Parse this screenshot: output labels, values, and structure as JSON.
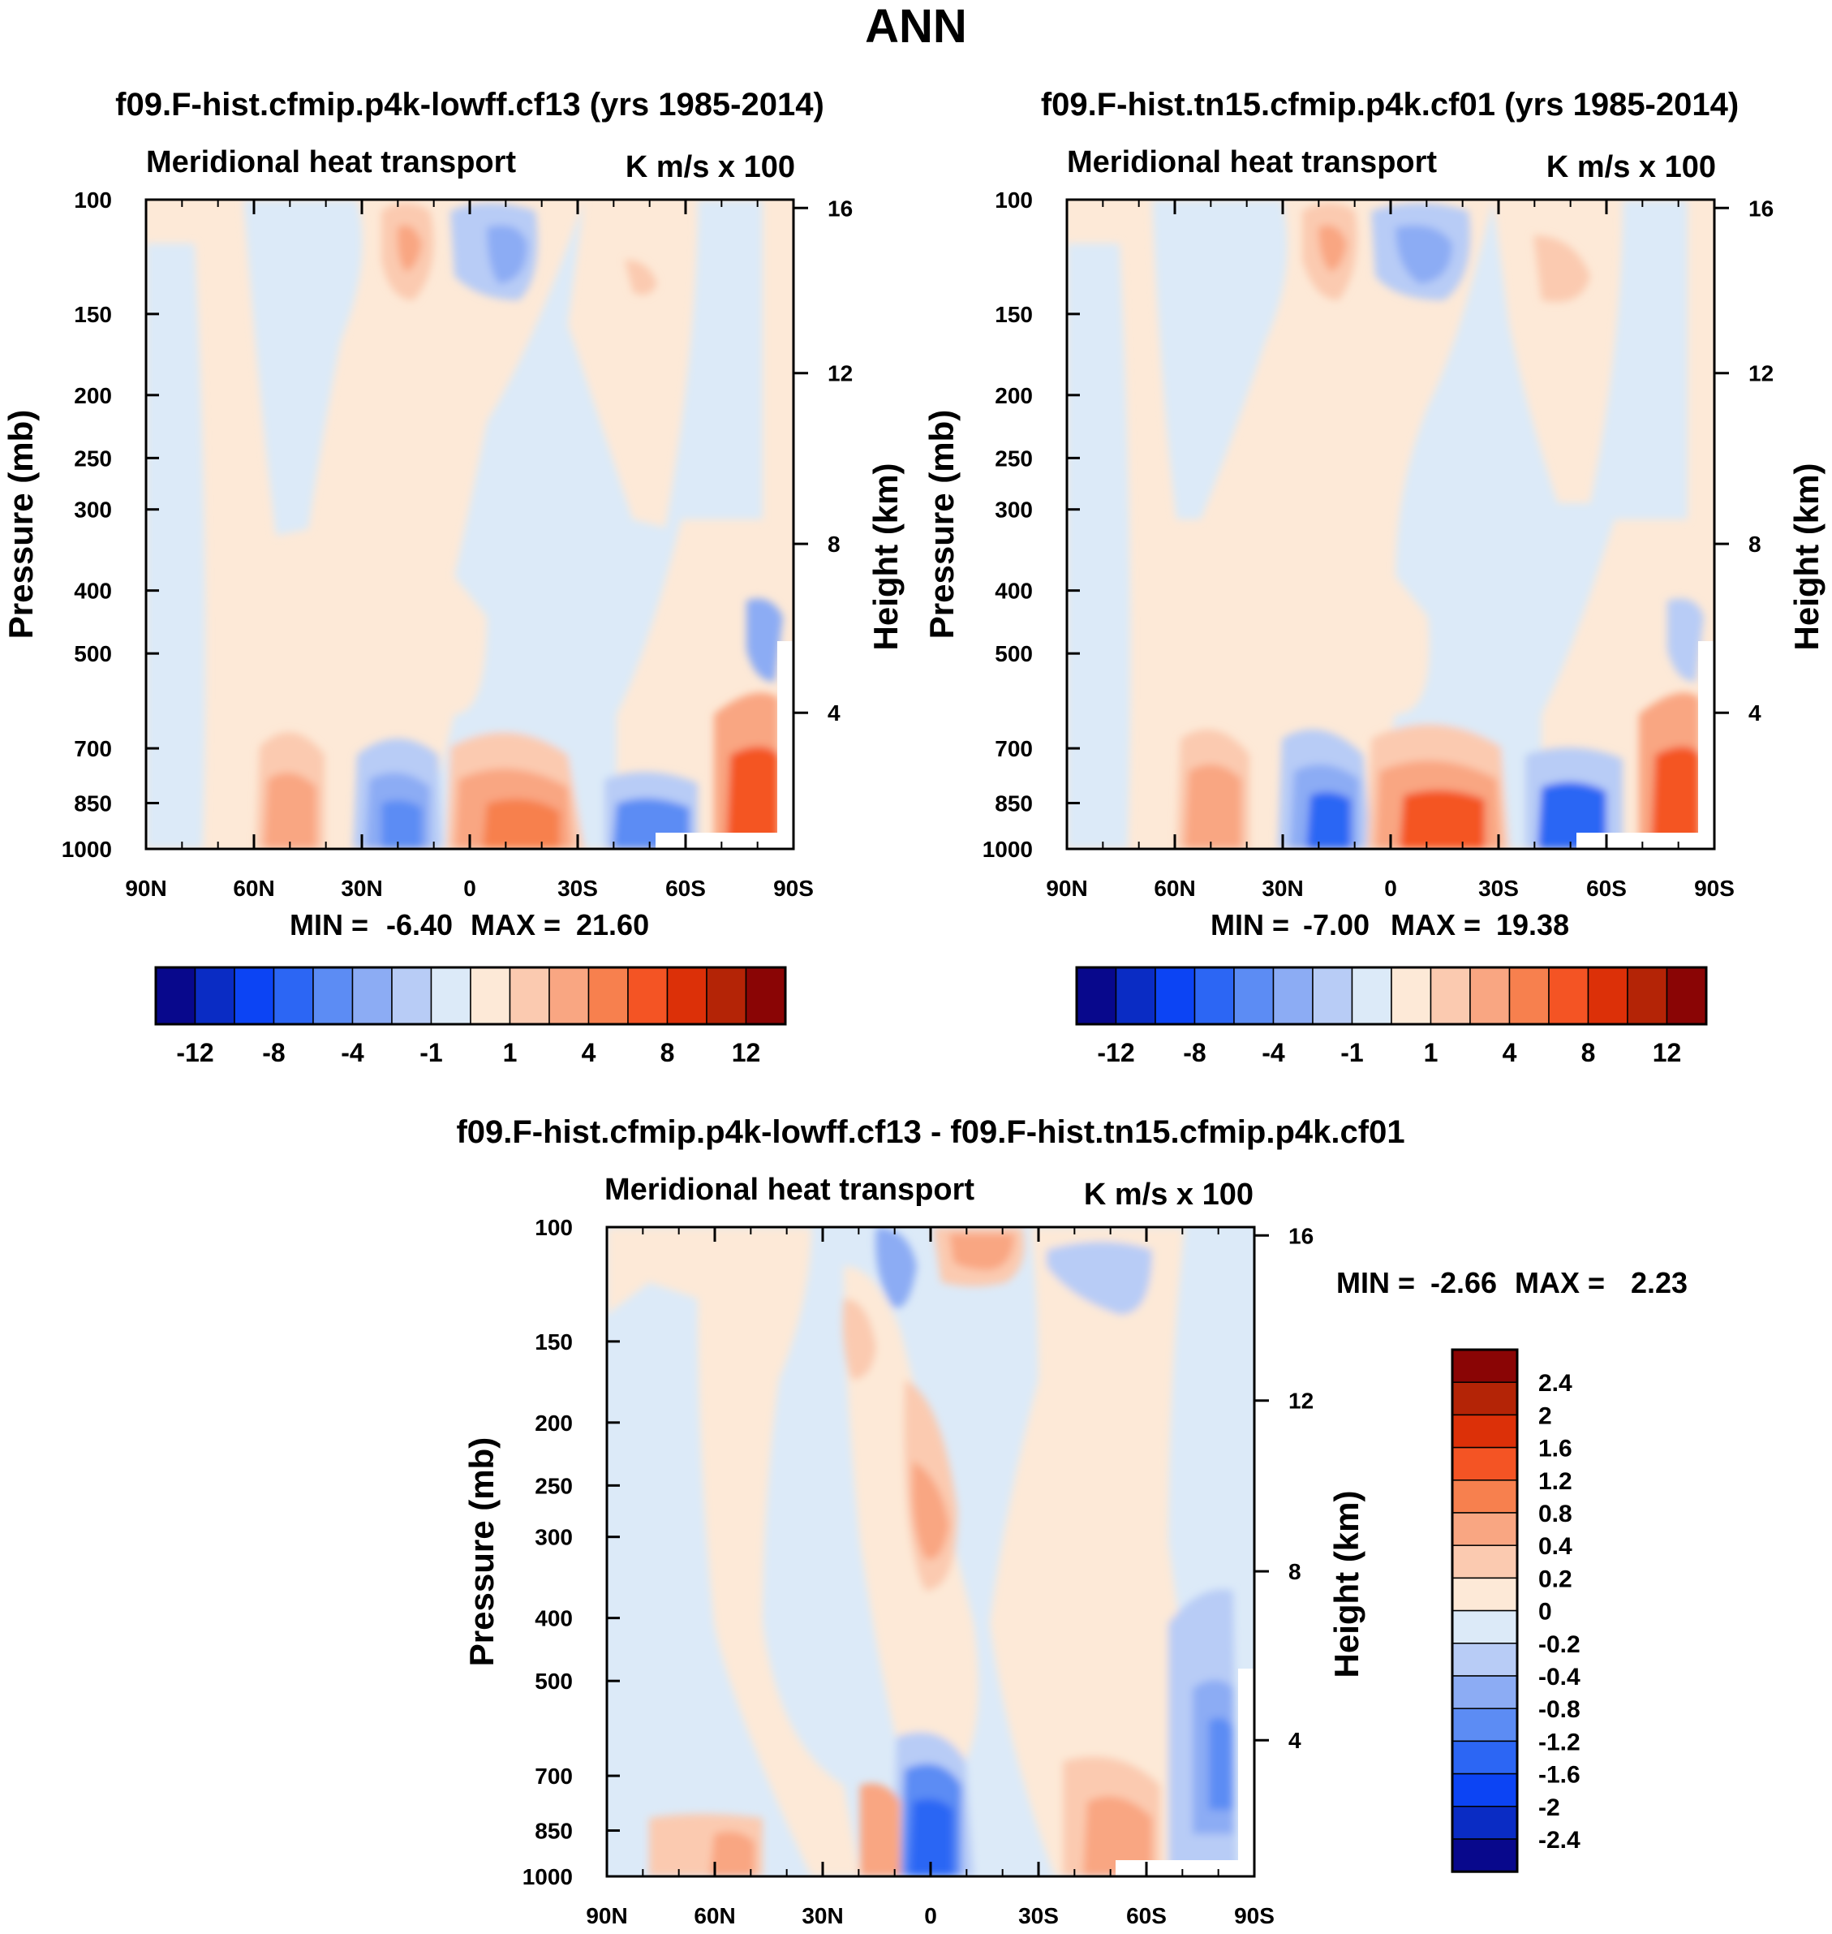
{
  "page_title": "ANN",
  "colors": {
    "colorbar_top": [
      "#08088c",
      "#0a2cc4",
      "#0c44f4",
      "#2c66f4",
      "#5c8cf4",
      "#8cacf4",
      "#b8ccf6",
      "#dceaf8",
      "#fde9d7",
      "#fbcab0",
      "#f9a682",
      "#f7804e",
      "#f45424",
      "#dc3008",
      "#b42406",
      "#8a0505"
    ],
    "colorbar_diff": [
      "#8a0505",
      "#b42406",
      "#dc3008",
      "#f45424",
      "#f7804e",
      "#f9a682",
      "#fbcab0",
      "#fde9d7",
      "#dceaf8",
      "#b8ccf6",
      "#8cacf4",
      "#5c8cf4",
      "#2c66f4",
      "#0c44f4",
      "#0a2cc4",
      "#08088c"
    ]
  },
  "chart_data": [
    {
      "type": "heatmap",
      "title": "f09.F-hist.cfmip.p4k-lowff.cf13 (yrs 1985-2014)",
      "subtitle_left": "Meridional heat transport",
      "subtitle_right": "K m/s x 100",
      "ylabel": "Pressure (mb)",
      "ylabel_right": "Height (km)",
      "x_ticks": [
        "90N",
        "60N",
        "30N",
        "0",
        "30S",
        "60S",
        "90S"
      ],
      "y_ticks": [
        "100",
        "150",
        "200",
        "250",
        "300",
        "400",
        "500",
        "700",
        "850",
        "1000"
      ],
      "y_right_ticks": [
        "16",
        "12",
        "8",
        "4"
      ],
      "min_label": "MIN =",
      "min_value": "-6.40",
      "max_label": "MAX =",
      "max_value": "21.60",
      "colorbar_labels": [
        "-12",
        "-8",
        "-4",
        "-1",
        "1",
        "4",
        "8",
        "12"
      ]
    },
    {
      "type": "heatmap",
      "title": "f09.F-hist.tn15.cfmip.p4k.cf01 (yrs 1985-2014)",
      "subtitle_left": "Meridional heat transport",
      "subtitle_right": "K m/s x 100",
      "ylabel": "Pressure (mb)",
      "ylabel_right": "Height (km)",
      "x_ticks": [
        "90N",
        "60N",
        "30N",
        "0",
        "30S",
        "60S",
        "90S"
      ],
      "y_ticks": [
        "100",
        "150",
        "200",
        "250",
        "300",
        "400",
        "500",
        "700",
        "850",
        "1000"
      ],
      "y_right_ticks": [
        "16",
        "12",
        "8",
        "4"
      ],
      "min_label": "MIN =",
      "min_value": "-7.00",
      "max_label": "MAX =",
      "max_value": "19.38",
      "colorbar_labels": [
        "-12",
        "-8",
        "-4",
        "-1",
        "1",
        "4",
        "8",
        "12"
      ]
    },
    {
      "type": "heatmap",
      "title": "f09.F-hist.cfmip.p4k-lowff.cf13 - f09.F-hist.tn15.cfmip.p4k.cf01",
      "subtitle_left": "Meridional heat transport",
      "subtitle_right": "K m/s x 100",
      "ylabel": "Pressure (mb)",
      "ylabel_right": "Height (km)",
      "x_ticks": [
        "90N",
        "60N",
        "30N",
        "0",
        "30S",
        "60S",
        "90S"
      ],
      "y_ticks": [
        "100",
        "150",
        "200",
        "250",
        "300",
        "400",
        "500",
        "700",
        "850",
        "1000"
      ],
      "y_right_ticks": [
        "16",
        "12",
        "8",
        "4"
      ],
      "min_label": "MIN =",
      "min_value": "-2.66",
      "max_label": "MAX =",
      "max_value": "2.23",
      "colorbar_labels": [
        "2.4",
        "2",
        "1.6",
        "1.2",
        "0.8",
        "0.4",
        "0.2",
        "0",
        "-0.2",
        "-0.4",
        "-0.8",
        "-1.2",
        "-1.6",
        "-2",
        "-2.4"
      ]
    }
  ]
}
